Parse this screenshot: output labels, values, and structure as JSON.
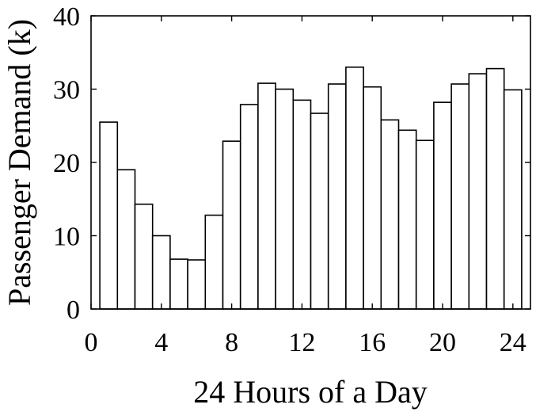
{
  "chart_data": {
    "type": "bar",
    "xlabel": "24 Hours of a Day",
    "ylabel": "Passenger Demand (k)",
    "xlim": [
      0,
      25
    ],
    "ylim": [
      0,
      40
    ],
    "x_ticks": [
      0,
      4,
      8,
      12,
      16,
      20,
      24
    ],
    "y_ticks": [
      0,
      10,
      20,
      30,
      40
    ],
    "grid": false,
    "categories": [
      1,
      2,
      3,
      4,
      5,
      6,
      7,
      8,
      9,
      10,
      11,
      12,
      13,
      14,
      15,
      16,
      17,
      18,
      19,
      20,
      21,
      22,
      23,
      24
    ],
    "values": [
      25.5,
      19.0,
      14.3,
      10.0,
      6.8,
      6.7,
      12.8,
      22.9,
      27.9,
      30.8,
      30.0,
      28.5,
      26.7,
      30.7,
      33.0,
      30.3,
      25.8,
      24.4,
      23.0,
      28.2,
      30.7,
      32.1,
      32.8,
      29.9
    ]
  }
}
